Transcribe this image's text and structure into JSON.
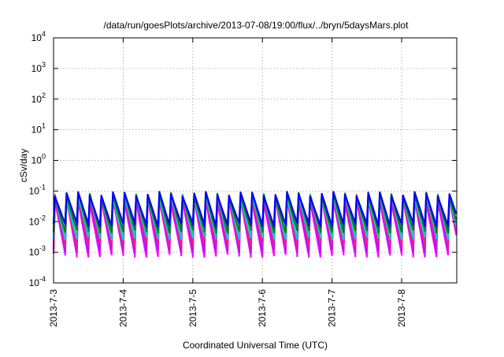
{
  "chart_data": {
    "type": "area",
    "title": "/data/run/goesPlots/archive/2013-07-08/19:00/flux/../bryn/5daysMars.plot",
    "xlabel": "Coordinated Universal Time (UTC)",
    "ylabel": "cSv/day",
    "y_scale": "log",
    "ylim": [
      0.0001,
      10000
    ],
    "y_ticks": [
      {
        "value": 0.0001,
        "mantissa": "10",
        "exp": "-4"
      },
      {
        "value": 0.001,
        "mantissa": "10",
        "exp": "-3"
      },
      {
        "value": 0.01,
        "mantissa": "10",
        "exp": "-2"
      },
      {
        "value": 0.1,
        "mantissa": "10",
        "exp": "-1"
      },
      {
        "value": 1,
        "mantissa": "10",
        "exp": "0"
      },
      {
        "value": 10,
        "mantissa": "10",
        "exp": "1"
      },
      {
        "value": 100,
        "mantissa": "10",
        "exp": "2"
      },
      {
        "value": 1000,
        "mantissa": "10",
        "exp": "3"
      },
      {
        "value": 10000,
        "mantissa": "10",
        "exp": "4"
      }
    ],
    "xlim": [
      "2013-07-03T00:00",
      "2013-07-08T19:00"
    ],
    "x_ticks": [
      {
        "value": "2013-07-03T00:00",
        "label": "2013-7-3"
      },
      {
        "value": "2013-07-04T00:00",
        "label": "2013-7-4"
      },
      {
        "value": "2013-07-05T00:00",
        "label": "2013-7-5"
      },
      {
        "value": "2013-07-06T00:00",
        "label": "2013-7-6"
      },
      {
        "value": "2013-07-07T00:00",
        "label": "2013-7-7"
      },
      {
        "value": "2013-07-08T00:00",
        "label": "2013-7-8"
      }
    ],
    "grid": true,
    "cycle_hours": 4,
    "series": [
      {
        "color": "#ff00ff",
        "peak": 0.05,
        "trough": 0.0008
      },
      {
        "color": "#a020f0",
        "peak": 0.06,
        "trough": 0.0012
      },
      {
        "color": "#ff1493",
        "peak": 0.065,
        "trough": 0.0018
      },
      {
        "color": "#00ced1",
        "peak": 0.07,
        "trough": 0.003
      },
      {
        "color": "#008000",
        "peak": 0.075,
        "trough": 0.005
      },
      {
        "color": "#0000ff",
        "peak": 0.08,
        "trough": 0.008
      }
    ],
    "colors": {
      "grid": "#a0a0a0",
      "axis": "#000000"
    }
  }
}
